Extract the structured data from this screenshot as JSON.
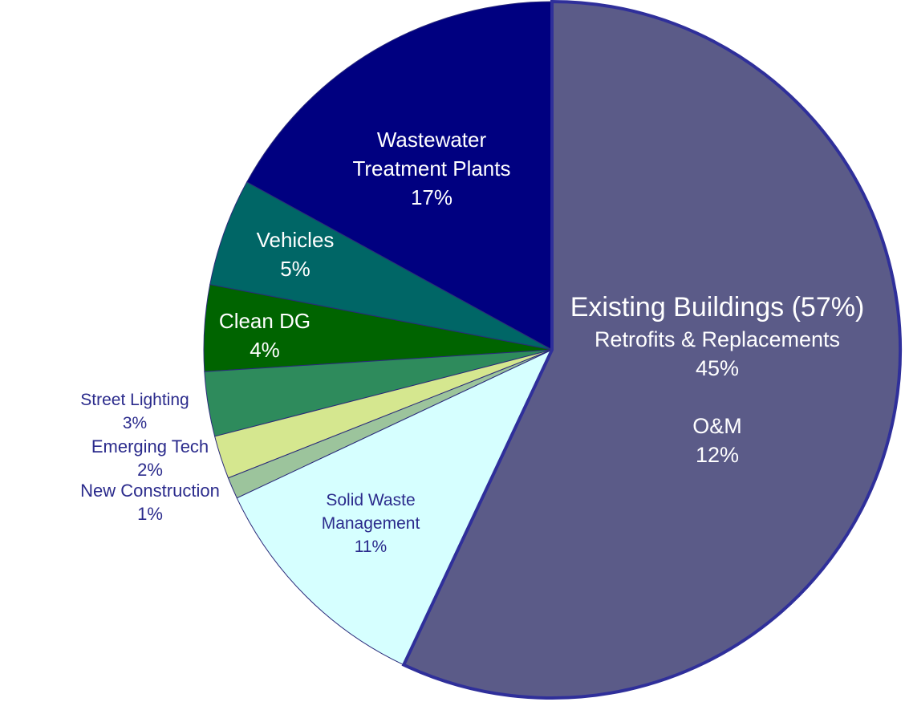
{
  "chart_data": {
    "type": "pie",
    "title": "",
    "slices": [
      {
        "name": "Existing Buildings",
        "value": 57,
        "color": "#5b5b88",
        "label_lines": [
          "Existing Buildings (57%)",
          "Retrofits & Replacements",
          "45%",
          "",
          "O&M",
          "12%"
        ],
        "sub_components": [
          {
            "name": "Retrofits & Replacements",
            "value": 45
          },
          {
            "name": "O&M",
            "value": 12
          }
        ]
      },
      {
        "name": "Solid Waste Management",
        "value": 11,
        "color": "#d6ffff",
        "label_lines": [
          "Solid Waste",
          "Management",
          "11%"
        ]
      },
      {
        "name": "New Construction",
        "value": 1,
        "color": "#9cc49c",
        "label_lines": [
          "New Construction",
          "1%"
        ]
      },
      {
        "name": "Emerging Tech",
        "value": 2,
        "color": "#d5e78f",
        "label_lines": [
          "Emerging Tech",
          "2%"
        ]
      },
      {
        "name": "Street Lighting",
        "value": 3,
        "color": "#2e8b5c",
        "label_lines": [
          "Street Lighting",
          "3%"
        ]
      },
      {
        "name": "Clean DG",
        "value": 4,
        "color": "#006400",
        "label_lines": [
          "Clean DG",
          "4%"
        ]
      },
      {
        "name": "Vehicles",
        "value": 5,
        "color": "#006666",
        "label_lines": [
          "Vehicles",
          "5%"
        ]
      },
      {
        "name": "Wastewater Treatment Plants",
        "value": 17,
        "color": "#000080",
        "label_lines": [
          "Wastewater",
          "Treatment Plants",
          "17%"
        ]
      }
    ],
    "label_colors": {
      "on_dark": "#ffffff",
      "on_light": "#2b2b8c"
    }
  }
}
